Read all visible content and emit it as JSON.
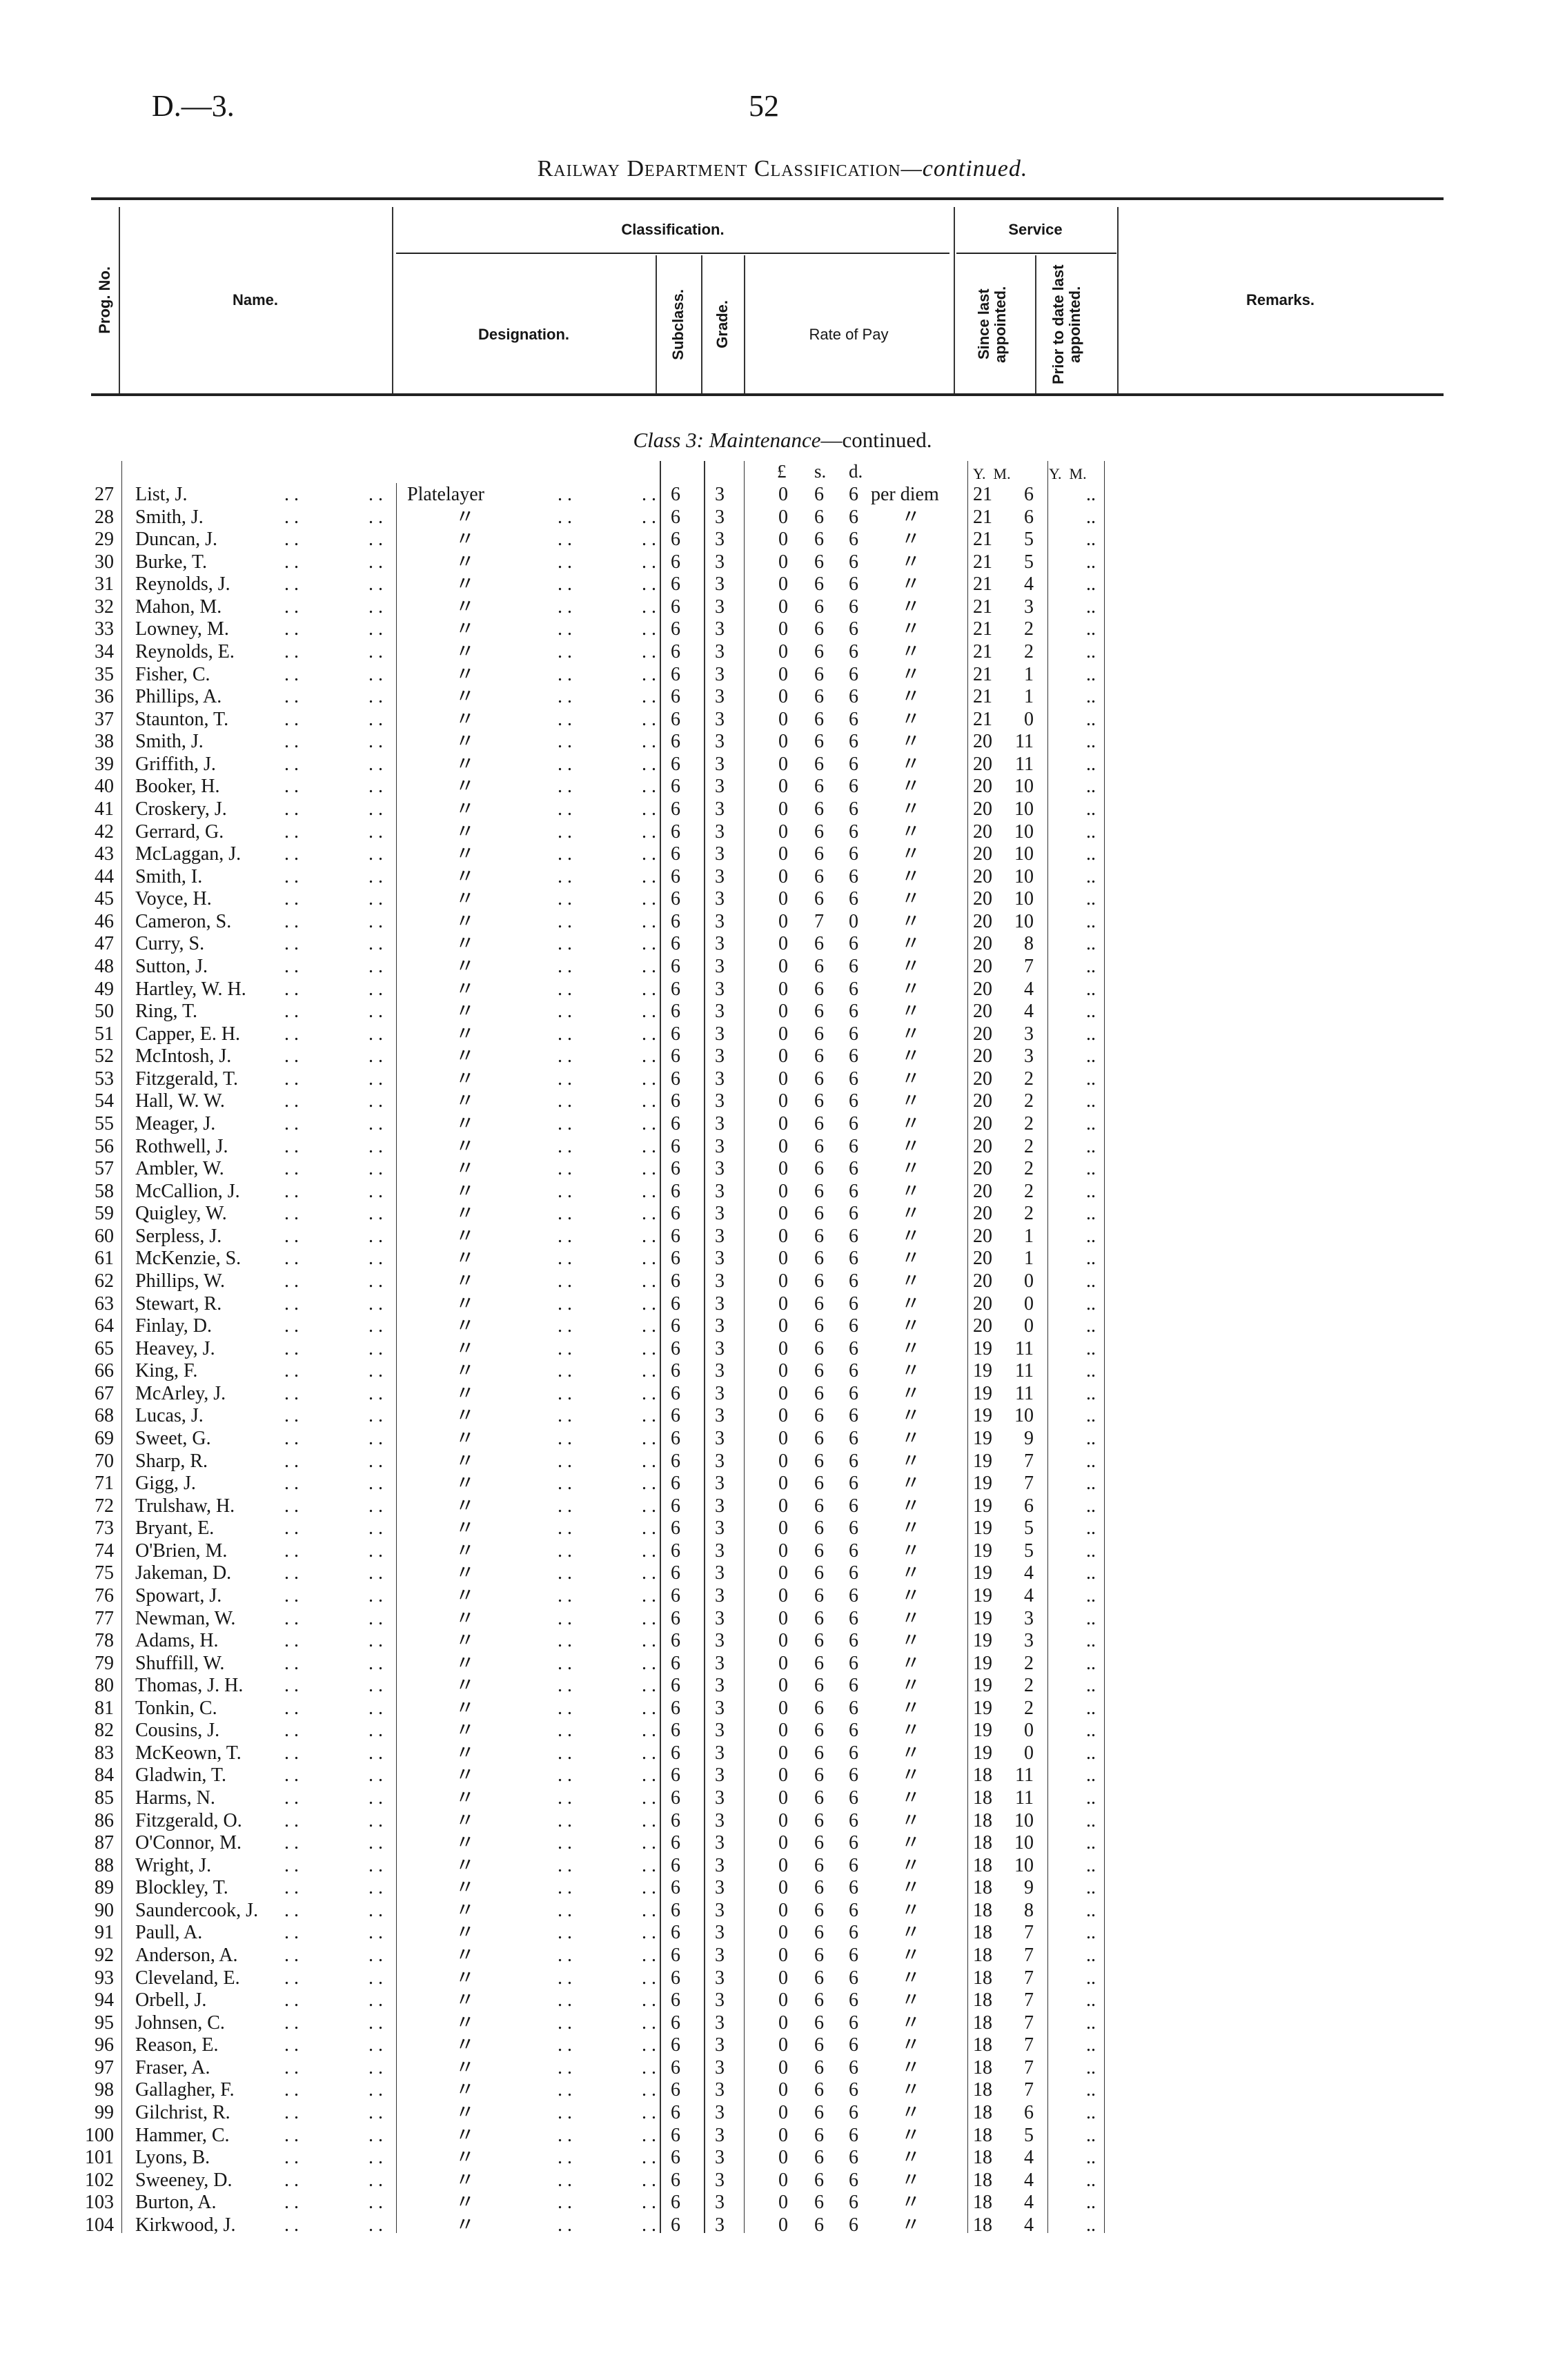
{
  "page": {
    "reference": "D.—3.",
    "number": "52",
    "title_main": "Railway Department Classification",
    "title_suffix": "—continued."
  },
  "header": {
    "prog_no": "Prog. No.",
    "name": "Name.",
    "classification": "Classification.",
    "designation": "Designation.",
    "subclass": "Subclass.",
    "grade": "Grade.",
    "rate_of_pay": "Rate of Pay",
    "service": "Service",
    "since_last": "Since last appointed.",
    "prior_to_date": "Prior to date last appointed.",
    "remarks": "Remarks."
  },
  "section": {
    "class_label": "Class 3",
    "class_name": "Maintenance",
    "continued": "—continued."
  },
  "units": {
    "pounds": "£",
    "shillings": "s.",
    "pence": "d.",
    "since_ym": "Y.  M.",
    "prior_ym": "Y.  M."
  },
  "ditto": "〃",
  "rows": [
    [
      "27",
      "List, J.",
      "Platelayer",
      "6",
      "3",
      "0",
      "6",
      "6",
      "per diem",
      "21",
      "6",
      ".."
    ],
    [
      "28",
      "Smith, J.",
      "〃",
      "6",
      "3",
      "0",
      "6",
      "6",
      "〃",
      "21",
      "6",
      ".."
    ],
    [
      "29",
      "Duncan, J.",
      "〃",
      "6",
      "3",
      "0",
      "6",
      "6",
      "〃",
      "21",
      "5",
      ".."
    ],
    [
      "30",
      "Burke, T.",
      "〃",
      "6",
      "3",
      "0",
      "6",
      "6",
      "〃",
      "21",
      "5",
      ".."
    ],
    [
      "31",
      "Reynolds, J.",
      "〃",
      "6",
      "3",
      "0",
      "6",
      "6",
      "〃",
      "21",
      "4",
      ".."
    ],
    [
      "32",
      "Mahon, M.",
      "〃",
      "6",
      "3",
      "0",
      "6",
      "6",
      "〃",
      "21",
      "3",
      ".."
    ],
    [
      "33",
      "Lowney, M.",
      "〃",
      "6",
      "3",
      "0",
      "6",
      "6",
      "〃",
      "21",
      "2",
      ".."
    ],
    [
      "34",
      "Reynolds, E.",
      "〃",
      "6",
      "3",
      "0",
      "6",
      "6",
      "〃",
      "21",
      "2",
      ".."
    ],
    [
      "35",
      "Fisher, C.",
      "〃",
      "6",
      "3",
      "0",
      "6",
      "6",
      "〃",
      "21",
      "1",
      ".."
    ],
    [
      "36",
      "Phillips, A.",
      "〃",
      "6",
      "3",
      "0",
      "6",
      "6",
      "〃",
      "21",
      "1",
      ".."
    ],
    [
      "37",
      "Staunton, T.",
      "〃",
      "6",
      "3",
      "0",
      "6",
      "6",
      "〃",
      "21",
      "0",
      ".."
    ],
    [
      "38",
      "Smith, J.",
      "〃",
      "6",
      "3",
      "0",
      "6",
      "6",
      "〃",
      "20",
      "11",
      ".."
    ],
    [
      "39",
      "Griffith, J.",
      "〃",
      "6",
      "3",
      "0",
      "6",
      "6",
      "〃",
      "20",
      "11",
      ".."
    ],
    [
      "40",
      "Booker, H.",
      "〃",
      "6",
      "3",
      "0",
      "6",
      "6",
      "〃",
      "20",
      "10",
      ".."
    ],
    [
      "41",
      "Croskery, J.",
      "〃",
      "6",
      "3",
      "0",
      "6",
      "6",
      "〃",
      "20",
      "10",
      ".."
    ],
    [
      "42",
      "Gerrard, G.",
      "〃",
      "6",
      "3",
      "0",
      "6",
      "6",
      "〃",
      "20",
      "10",
      ".."
    ],
    [
      "43",
      "McLaggan, J.",
      "〃",
      "6",
      "3",
      "0",
      "6",
      "6",
      "〃",
      "20",
      "10",
      ".."
    ],
    [
      "44",
      "Smith, I.",
      "〃",
      "6",
      "3",
      "0",
      "6",
      "6",
      "〃",
      "20",
      "10",
      ".."
    ],
    [
      "45",
      "Voyce, H.",
      "〃",
      "6",
      "3",
      "0",
      "6",
      "6",
      "〃",
      "20",
      "10",
      ".."
    ],
    [
      "46",
      "Cameron, S.",
      "〃",
      "6",
      "3",
      "0",
      "7",
      "0",
      "〃",
      "20",
      "10",
      ".."
    ],
    [
      "47",
      "Curry, S.",
      "〃",
      "6",
      "3",
      "0",
      "6",
      "6",
      "〃",
      "20",
      "8",
      ".."
    ],
    [
      "48",
      "Sutton, J.",
      "〃",
      "6",
      "3",
      "0",
      "6",
      "6",
      "〃",
      "20",
      "7",
      ".."
    ],
    [
      "49",
      "Hartley, W. H.",
      "〃",
      "6",
      "3",
      "0",
      "6",
      "6",
      "〃",
      "20",
      "4",
      ".."
    ],
    [
      "50",
      "Ring, T.",
      "〃",
      "6",
      "3",
      "0",
      "6",
      "6",
      "〃",
      "20",
      "4",
      ".."
    ],
    [
      "51",
      "Capper, E. H.",
      "〃",
      "6",
      "3",
      "0",
      "6",
      "6",
      "〃",
      "20",
      "3",
      ".."
    ],
    [
      "52",
      "McIntosh, J.",
      "〃",
      "6",
      "3",
      "0",
      "6",
      "6",
      "〃",
      "20",
      "3",
      ".."
    ],
    [
      "53",
      "Fitzgerald, T.",
      "〃",
      "6",
      "3",
      "0",
      "6",
      "6",
      "〃",
      "20",
      "2",
      ".."
    ],
    [
      "54",
      "Hall, W. W.",
      "〃",
      "6",
      "3",
      "0",
      "6",
      "6",
      "〃",
      "20",
      "2",
      ".."
    ],
    [
      "55",
      "Meager, J.",
      "〃",
      "6",
      "3",
      "0",
      "6",
      "6",
      "〃",
      "20",
      "2",
      ".."
    ],
    [
      "56",
      "Rothwell, J.",
      "〃",
      "6",
      "3",
      "0",
      "6",
      "6",
      "〃",
      "20",
      "2",
      ".."
    ],
    [
      "57",
      "Ambler, W.",
      "〃",
      "6",
      "3",
      "0",
      "6",
      "6",
      "〃",
      "20",
      "2",
      ".."
    ],
    [
      "58",
      "McCallion, J.",
      "〃",
      "6",
      "3",
      "0",
      "6",
      "6",
      "〃",
      "20",
      "2",
      ".."
    ],
    [
      "59",
      "Quigley, W.",
      "〃",
      "6",
      "3",
      "0",
      "6",
      "6",
      "〃",
      "20",
      "2",
      ".."
    ],
    [
      "60",
      "Serpless, J.",
      "〃",
      "6",
      "3",
      "0",
      "6",
      "6",
      "〃",
      "20",
      "1",
      ".."
    ],
    [
      "61",
      "McKenzie, S.",
      "〃",
      "6",
      "3",
      "0",
      "6",
      "6",
      "〃",
      "20",
      "1",
      ".."
    ],
    [
      "62",
      "Phillips, W.",
      "〃",
      "6",
      "3",
      "0",
      "6",
      "6",
      "〃",
      "20",
      "0",
      ".."
    ],
    [
      "63",
      "Stewart, R.",
      "〃",
      "6",
      "3",
      "0",
      "6",
      "6",
      "〃",
      "20",
      "0",
      ".."
    ],
    [
      "64",
      "Finlay, D.",
      "〃",
      "6",
      "3",
      "0",
      "6",
      "6",
      "〃",
      "20",
      "0",
      ".."
    ],
    [
      "65",
      "Heavey, J.",
      "〃",
      "6",
      "3",
      "0",
      "6",
      "6",
      "〃",
      "19",
      "11",
      ".."
    ],
    [
      "66",
      "King, F.",
      "〃",
      "6",
      "3",
      "0",
      "6",
      "6",
      "〃",
      "19",
      "11",
      ".."
    ],
    [
      "67",
      "McArley, J.",
      "〃",
      "6",
      "3",
      "0",
      "6",
      "6",
      "〃",
      "19",
      "11",
      ".."
    ],
    [
      "68",
      "Lucas, J.",
      "〃",
      "6",
      "3",
      "0",
      "6",
      "6",
      "〃",
      "19",
      "10",
      ".."
    ],
    [
      "69",
      "Sweet, G.",
      "〃",
      "6",
      "3",
      "0",
      "6",
      "6",
      "〃",
      "19",
      "9",
      ".."
    ],
    [
      "70",
      "Sharp, R.",
      "〃",
      "6",
      "3",
      "0",
      "6",
      "6",
      "〃",
      "19",
      "7",
      ".."
    ],
    [
      "71",
      "Gigg, J.",
      "〃",
      "6",
      "3",
      "0",
      "6",
      "6",
      "〃",
      "19",
      "7",
      ".."
    ],
    [
      "72",
      "Trulshaw, H.",
      "〃",
      "6",
      "3",
      "0",
      "6",
      "6",
      "〃",
      "19",
      "6",
      ".."
    ],
    [
      "73",
      "Bryant, E.",
      "〃",
      "6",
      "3",
      "0",
      "6",
      "6",
      "〃",
      "19",
      "5",
      ".."
    ],
    [
      "74",
      "O'Brien, M.",
      "〃",
      "6",
      "3",
      "0",
      "6",
      "6",
      "〃",
      "19",
      "5",
      ".."
    ],
    [
      "75",
      "Jakeman, D.",
      "〃",
      "6",
      "3",
      "0",
      "6",
      "6",
      "〃",
      "19",
      "4",
      ".."
    ],
    [
      "76",
      "Spowart, J.",
      "〃",
      "6",
      "3",
      "0",
      "6",
      "6",
      "〃",
      "19",
      "4",
      ".."
    ],
    [
      "77",
      "Newman, W.",
      "〃",
      "6",
      "3",
      "0",
      "6",
      "6",
      "〃",
      "19",
      "3",
      ".."
    ],
    [
      "78",
      "Adams, H.",
      "〃",
      "6",
      "3",
      "0",
      "6",
      "6",
      "〃",
      "19",
      "3",
      ".."
    ],
    [
      "79",
      "Shuffill, W.",
      "〃",
      "6",
      "3",
      "0",
      "6",
      "6",
      "〃",
      "19",
      "2",
      ".."
    ],
    [
      "80",
      "Thomas, J. H.",
      "〃",
      "6",
      "3",
      "0",
      "6",
      "6",
      "〃",
      "19",
      "2",
      ".."
    ],
    [
      "81",
      "Tonkin, C.",
      "〃",
      "6",
      "3",
      "0",
      "6",
      "6",
      "〃",
      "19",
      "2",
      ".."
    ],
    [
      "82",
      "Cousins, J.",
      "〃",
      "6",
      "3",
      "0",
      "6",
      "6",
      "〃",
      "19",
      "0",
      ".."
    ],
    [
      "83",
      "McKeown, T.",
      "〃",
      "6",
      "3",
      "0",
      "6",
      "6",
      "〃",
      "19",
      "0",
      ".."
    ],
    [
      "84",
      "Gladwin, T.",
      "〃",
      "6",
      "3",
      "0",
      "6",
      "6",
      "〃",
      "18",
      "11",
      ".."
    ],
    [
      "85",
      "Harms, N.",
      "〃",
      "6",
      "3",
      "0",
      "6",
      "6",
      "〃",
      "18",
      "11",
      ".."
    ],
    [
      "86",
      "Fitzgerald, O.",
      "〃",
      "6",
      "3",
      "0",
      "6",
      "6",
      "〃",
      "18",
      "10",
      ".."
    ],
    [
      "87",
      "O'Connor, M.",
      "〃",
      "6",
      "3",
      "0",
      "6",
      "6",
      "〃",
      "18",
      "10",
      ".."
    ],
    [
      "88",
      "Wright, J.",
      "〃",
      "6",
      "3",
      "0",
      "6",
      "6",
      "〃",
      "18",
      "10",
      ".."
    ],
    [
      "89",
      "Blockley, T.",
      "〃",
      "6",
      "3",
      "0",
      "6",
      "6",
      "〃",
      "18",
      "9",
      ".."
    ],
    [
      "90",
      "Saundercook, J.",
      "〃",
      "6",
      "3",
      "0",
      "6",
      "6",
      "〃",
      "18",
      "8",
      ".."
    ],
    [
      "91",
      "Paull, A.",
      "〃",
      "6",
      "3",
      "0",
      "6",
      "6",
      "〃",
      "18",
      "7",
      ".."
    ],
    [
      "92",
      "Anderson, A.",
      "〃",
      "6",
      "3",
      "0",
      "6",
      "6",
      "〃",
      "18",
      "7",
      ".."
    ],
    [
      "93",
      "Cleveland, E.",
      "〃",
      "6",
      "3",
      "0",
      "6",
      "6",
      "〃",
      "18",
      "7",
      ".."
    ],
    [
      "94",
      "Orbell, J.",
      "〃",
      "6",
      "3",
      "0",
      "6",
      "6",
      "〃",
      "18",
      "7",
      ".."
    ],
    [
      "95",
      "Johnsen, C.",
      "〃",
      "6",
      "3",
      "0",
      "6",
      "6",
      "〃",
      "18",
      "7",
      ".."
    ],
    [
      "96",
      "Reason, E.",
      "〃",
      "6",
      "3",
      "0",
      "6",
      "6",
      "〃",
      "18",
      "7",
      ".."
    ],
    [
      "97",
      "Fraser, A.",
      "〃",
      "6",
      "3",
      "0",
      "6",
      "6",
      "〃",
      "18",
      "7",
      ".."
    ],
    [
      "98",
      "Gallagher, F.",
      "〃",
      "6",
      "3",
      "0",
      "6",
      "6",
      "〃",
      "18",
      "7",
      ".."
    ],
    [
      "99",
      "Gilchrist, R.",
      "〃",
      "6",
      "3",
      "0",
      "6",
      "6",
      "〃",
      "18",
      "6",
      ".."
    ],
    [
      "100",
      "Hammer, C.",
      "〃",
      "6",
      "3",
      "0",
      "6",
      "6",
      "〃",
      "18",
      "5",
      ".."
    ],
    [
      "101",
      "Lyons, B.",
      "〃",
      "6",
      "3",
      "0",
      "6",
      "6",
      "〃",
      "18",
      "4",
      ".."
    ],
    [
      "102",
      "Sweeney, D.",
      "〃",
      "6",
      "3",
      "0",
      "6",
      "6",
      "〃",
      "18",
      "4",
      ".."
    ],
    [
      "103",
      "Burton, A.",
      "〃",
      "6",
      "3",
      "0",
      "6",
      "6",
      "〃",
      "18",
      "4",
      ".."
    ],
    [
      "104",
      "Kirkwood, J.",
      "〃",
      "6",
      "3",
      "0",
      "6",
      "6",
      "〃",
      "18",
      "4",
      ".."
    ]
  ]
}
